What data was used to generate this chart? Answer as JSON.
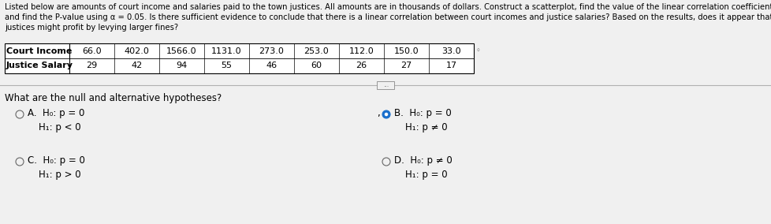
{
  "header_text": "Listed below are amounts of court income and salaries paid to the town justices. All amounts are in thousands of dollars. Construct a scatterplot, find the value of the linear correlation coefficient r,\nand find the P-value using α = 0.05. Is there sufficient evidence to conclude that there is a linear correlation between court incomes and justice salaries? Based on the results, does it appear that\njustices might profit by levying larger fines?",
  "table": {
    "row_labels": [
      "Court Income",
      "Justice Salary"
    ],
    "court_income": [
      "66.0",
      "402.0",
      "1566.0",
      "1131.0",
      "273.0",
      "253.0",
      "112.0",
      "150.0",
      "33.0"
    ],
    "justice_salary": [
      "29",
      "42",
      "94",
      "55",
      "46",
      "60",
      "26",
      "27",
      "17"
    ]
  },
  "question": "What are the null and alternative hypotheses?",
  "options": {
    "A": {
      "label": "A.",
      "h0": "H₀: p = 0",
      "h1": "H₁: p < 0",
      "selected": false
    },
    "B": {
      "label": "B.",
      "h0": "H₀: p = 0",
      "h1": "H₁: p ≠ 0",
      "selected": true
    },
    "C": {
      "label": "C.",
      "h0": "H₀: p = 0",
      "h1": "H₁: p > 0",
      "selected": false
    },
    "D": {
      "label": "D.",
      "h0": "H₀: p ≠ 0",
      "h1": "H₁: p = 0",
      "selected": false
    }
  },
  "bg_color": "#f0f0f0",
  "text_color": "#000000",
  "header_fontsize": 7.2,
  "table_fontsize": 8.0,
  "question_fontsize": 8.5,
  "option_fontsize": 8.5,
  "selected_color": "#1a6fcc",
  "separator_color": "#b0b0b0"
}
